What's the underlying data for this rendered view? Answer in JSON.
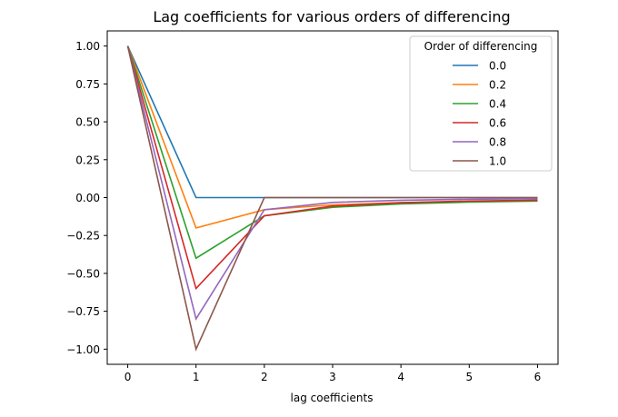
{
  "chart_data": {
    "type": "line",
    "title": "Lag coefficients for various orders of differencing",
    "xlabel": "lag coefficients",
    "ylabel": "",
    "x": [
      0,
      1,
      2,
      3,
      4,
      5,
      6
    ],
    "xlim": [
      -0.3,
      6.3
    ],
    "ylim": [
      -1.1,
      1.1
    ],
    "xticks": [
      0,
      1,
      2,
      3,
      4,
      5,
      6
    ],
    "yticks": [
      1.0,
      0.75,
      0.5,
      0.25,
      0.0,
      -0.25,
      -0.5,
      -0.75,
      -1.0
    ],
    "ytick_labels": [
      "1.00",
      "0.75",
      "0.50",
      "0.25",
      "0.00",
      "−0.25",
      "−0.50",
      "−0.75",
      "−1.00"
    ],
    "grid": false,
    "legend": {
      "title": "Order of differencing",
      "placement": "top-right"
    },
    "series": [
      {
        "name": "0.0",
        "color": "#1f77b4",
        "values": [
          1.0,
          0.0,
          0.0,
          0.0,
          0.0,
          0.0,
          0.0
        ]
      },
      {
        "name": "0.2",
        "color": "#ff7f0e",
        "values": [
          1.0,
          -0.2,
          -0.08,
          -0.048,
          -0.0336,
          -0.0255,
          -0.0204
        ]
      },
      {
        "name": "0.4",
        "color": "#2ca02c",
        "values": [
          1.0,
          -0.4,
          -0.12,
          -0.064,
          -0.0416,
          -0.0299,
          -0.0229
        ]
      },
      {
        "name": "0.6",
        "color": "#d62728",
        "values": [
          1.0,
          -0.6,
          -0.12,
          -0.056,
          -0.0336,
          -0.0228,
          -0.0167
        ]
      },
      {
        "name": "0.8",
        "color": "#9467bd",
        "values": [
          1.0,
          -0.8,
          -0.08,
          -0.032,
          -0.0176,
          -0.0112,
          -0.0078
        ]
      },
      {
        "name": "1.0",
        "color": "#8c564b",
        "values": [
          1.0,
          -1.0,
          0.0,
          0.0,
          0.0,
          0.0,
          0.0
        ]
      }
    ]
  }
}
